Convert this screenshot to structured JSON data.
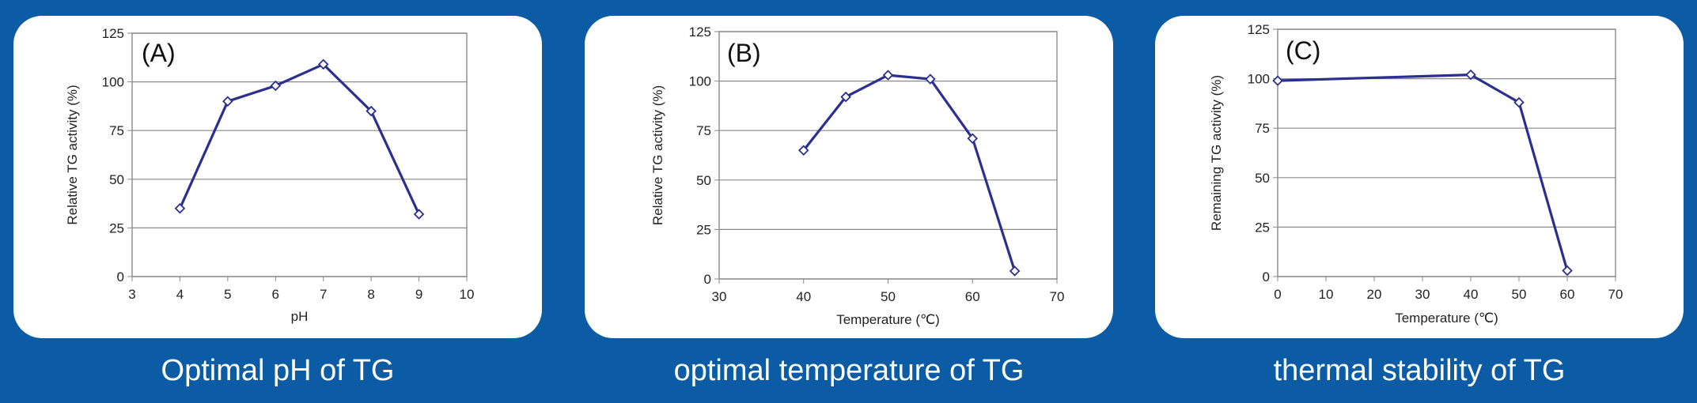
{
  "chart_data": [
    {
      "type": "line",
      "panel_label": "(A)",
      "caption": "Optimal pH of TG",
      "xlabel": "pH",
      "ylabel": "Relative TG activity (%)",
      "xlim": [
        3,
        10
      ],
      "ylim": [
        0,
        125
      ],
      "xticks": [
        3,
        4,
        5,
        6,
        7,
        8,
        9,
        10
      ],
      "yticks": [
        0,
        25,
        50,
        75,
        100,
        125
      ],
      "x": [
        4,
        5,
        6,
        7,
        8,
        9
      ],
      "y": [
        35,
        90,
        98,
        109,
        85,
        32
      ],
      "grid": true,
      "line_color": "#2b2f8f"
    },
    {
      "type": "line",
      "panel_label": "(B)",
      "caption": "optimal temperature of TG",
      "xlabel": "Temperature (℃)",
      "ylabel": "Relative TG activity (%)",
      "xlim": [
        30,
        70
      ],
      "ylim": [
        0,
        125
      ],
      "xticks": [
        30,
        40,
        50,
        60,
        70
      ],
      "yticks": [
        0,
        25,
        50,
        75,
        100,
        125
      ],
      "x": [
        40,
        45,
        50,
        55,
        60,
        65
      ],
      "y": [
        65,
        92,
        103,
        101,
        71,
        4
      ],
      "grid": true,
      "line_color": "#2b2f8f"
    },
    {
      "type": "line",
      "panel_label": "(C)",
      "caption": "thermal stability of TG",
      "xlabel": "Temperature (℃)",
      "ylabel": "Remaining TG activity (%)",
      "xlim": [
        0,
        70
      ],
      "ylim": [
        0,
        125
      ],
      "xticks": [
        0,
        10,
        20,
        30,
        40,
        50,
        60,
        70
      ],
      "yticks": [
        0,
        25,
        50,
        75,
        100,
        125
      ],
      "x": [
        0,
        40,
        50,
        60
      ],
      "y": [
        99,
        102,
        88,
        3
      ],
      "grid": true,
      "line_color": "#2b2f8f"
    }
  ]
}
